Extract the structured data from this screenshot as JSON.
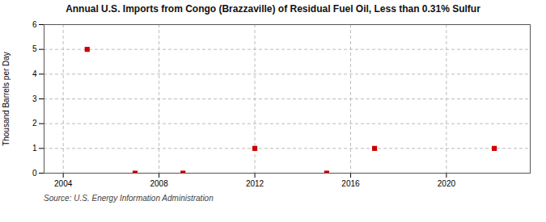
{
  "chart_data": {
    "type": "scatter",
    "title": "Annual U.S. Imports from Congo (Brazzaville) of Residual Fuel Oil, Less than 0.31% Sulfur",
    "ylabel": "Thousand Barrels per Day",
    "source": "Source: U.S. Energy Information Administration",
    "x": [
      2005,
      2007,
      2009,
      2012,
      2015,
      2017,
      2022
    ],
    "values": [
      5,
      0,
      0,
      1,
      0,
      1,
      1
    ],
    "color": "#cc0000",
    "marker": "square",
    "xlim": [
      2003.2,
      2023.5
    ],
    "ylim": [
      0,
      6
    ],
    "xticks": [
      2004,
      2008,
      2012,
      2016,
      2020
    ],
    "yticks": [
      0,
      1,
      2,
      3,
      4,
      5,
      6
    ],
    "grid": true
  }
}
